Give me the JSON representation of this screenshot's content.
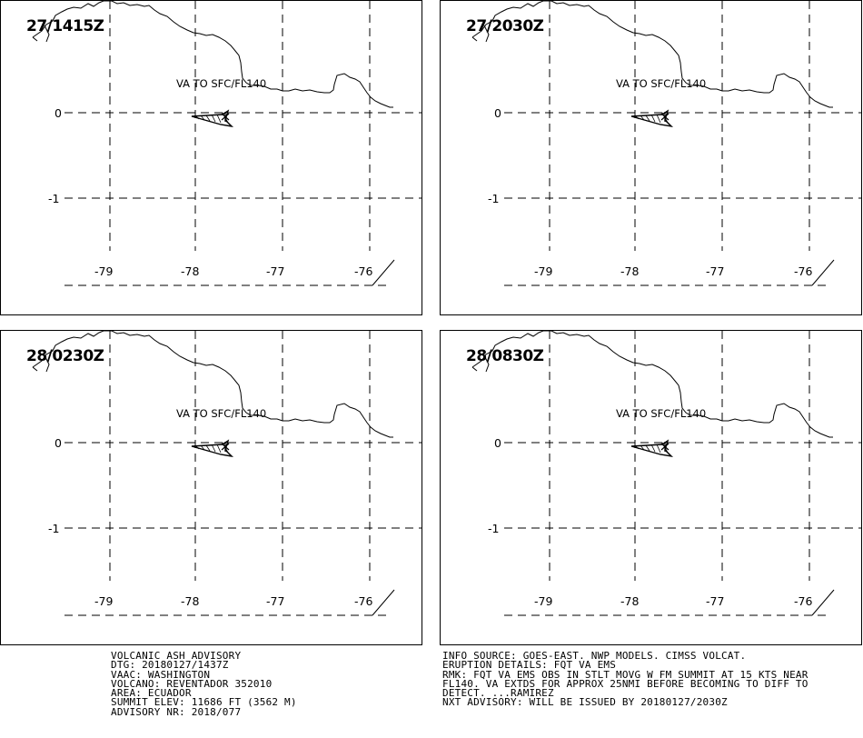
{
  "panels": [
    {
      "time": "27/1415Z",
      "label": "VA TO SFC/FL140"
    },
    {
      "time": "27/2030Z",
      "label": "VA TO SFC/FL140"
    },
    {
      "time": "28/0230Z",
      "label": "VA TO SFC/FL140"
    },
    {
      "time": "28/0830Z",
      "label": "VA TO SFC/FL140"
    }
  ],
  "lat_labels": [
    "0",
    "-1"
  ],
  "lon_labels": [
    "-79",
    "-78",
    "-77",
    "-76"
  ],
  "advisory_left": [
    "VOLCANIC ASH ADVISORY",
    "DTG: 20180127/1437Z",
    "VAAC: WASHINGTON",
    "VOLCANO: REVENTADOR 352010",
    "AREA: ECUADOR",
    "SUMMIT ELEV: 11686 FT (3562 M)",
    "ADVISORY NR: 2018/077"
  ],
  "advisory_right": [
    "INFO SOURCE: GOES-EAST. NWP MODELS. CIMSS VOLCAT.",
    "ERUPTION DETAILS: FQT VA EMS",
    "RMK: FQT VA EMS OBS IN STLT MOVG W FM SUMMIT AT 15 KTS NEAR",
    "FL140. VA EXTDS FOR APPROX 25NMI BEFORE BECOMING TO DIFF TO",
    "DETECT. ...RAMIREZ",
    "NXT ADVISORY: WILL BE ISSUED BY 20180127/2030Z"
  ]
}
